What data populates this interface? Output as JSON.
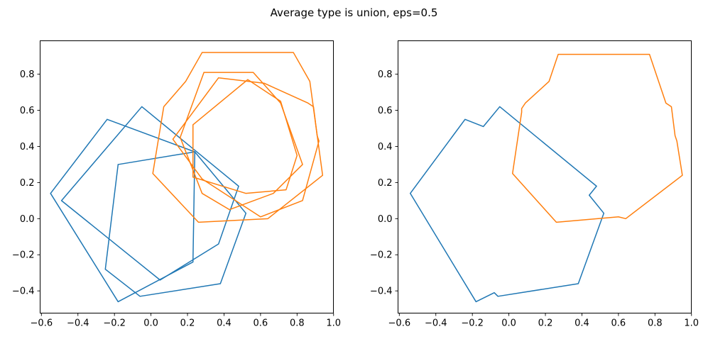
{
  "title": {
    "text": "Average type is union, eps=0.5"
  },
  "colors": {
    "blue": "#1f77b4",
    "orange": "#ff7f0e",
    "spine": "#000000",
    "tick_text": "#000000",
    "background": "#ffffff"
  },
  "chart_data": [
    {
      "id": "left",
      "type": "line",
      "description": "sample polygons",
      "xlim": [
        -0.609,
        1.001
      ],
      "ylim": [
        -0.525,
        0.987
      ],
      "grid": false,
      "legend": "none",
      "xticks": [
        -0.6,
        -0.4,
        -0.2,
        0.0,
        0.2,
        0.4,
        0.6,
        0.8,
        1.0
      ],
      "xtick_labels": [
        "−0.6",
        "−0.4",
        "−0.2",
        "0.0",
        "0.2",
        "0.4",
        "0.6",
        "0.8",
        "1.0"
      ],
      "yticks": [
        0.8,
        0.6,
        0.4,
        0.2,
        0.0,
        -0.2,
        -0.4
      ],
      "ytick_labels": [
        "0.8",
        "0.6",
        "0.4",
        "0.2",
        "0.0",
        "−0.2",
        "−0.4"
      ],
      "series": [
        {
          "name": "sample-polygon-blue-1",
          "color": "blue",
          "closed": true,
          "points": [
            [
              -0.24,
              0.55
            ],
            [
              -0.55,
              0.14
            ],
            [
              -0.18,
              -0.46
            ],
            [
              0.23,
              -0.24
            ],
            [
              0.24,
              0.37
            ]
          ]
        },
        {
          "name": "sample-polygon-blue-2",
          "color": "blue",
          "closed": true,
          "points": [
            [
              -0.05,
              0.62
            ],
            [
              -0.49,
              0.1
            ],
            [
              0.05,
              -0.34
            ],
            [
              0.37,
              -0.14
            ],
            [
              0.48,
              0.18
            ]
          ]
        },
        {
          "name": "sample-polygon-blue-3",
          "color": "blue",
          "closed": true,
          "points": [
            [
              -0.18,
              0.3
            ],
            [
              0.24,
              0.37
            ],
            [
              0.52,
              0.03
            ],
            [
              0.38,
              -0.36
            ],
            [
              -0.06,
              -0.43
            ],
            [
              -0.25,
              -0.28
            ]
          ]
        },
        {
          "name": "sample-polygon-orange-1",
          "color": "orange",
          "closed": true,
          "points": [
            [
              0.28,
              0.92
            ],
            [
              0.78,
              0.92
            ],
            [
              0.87,
              0.76
            ],
            [
              0.94,
              0.24
            ],
            [
              0.64,
              0.0
            ],
            [
              0.26,
              -0.02
            ],
            [
              0.01,
              0.25
            ],
            [
              0.07,
              0.62
            ],
            [
              0.19,
              0.76
            ]
          ]
        },
        {
          "name": "sample-polygon-orange-2",
          "color": "orange",
          "closed": true,
          "points": [
            [
              0.29,
              0.81
            ],
            [
              0.56,
              0.81
            ],
            [
              0.71,
              0.64
            ],
            [
              0.83,
              0.3
            ],
            [
              0.67,
              0.14
            ],
            [
              0.43,
              0.05
            ],
            [
              0.28,
              0.14
            ],
            [
              0.16,
              0.45
            ]
          ]
        },
        {
          "name": "sample-polygon-orange-3",
          "color": "orange",
          "closed": true,
          "points": [
            [
              0.53,
              0.77
            ],
            [
              0.71,
              0.65
            ],
            [
              0.8,
              0.35
            ],
            [
              0.74,
              0.16
            ],
            [
              0.52,
              0.14
            ],
            [
              0.23,
              0.23
            ],
            [
              0.23,
              0.52
            ]
          ]
        },
        {
          "name": "sample-polygon-orange-4",
          "color": "orange",
          "closed": true,
          "points": [
            [
              0.37,
              0.78
            ],
            [
              0.62,
              0.75
            ],
            [
              0.86,
              0.64
            ],
            [
              0.89,
              0.62
            ],
            [
              0.91,
              0.46
            ],
            [
              0.92,
              0.43
            ],
            [
              0.83,
              0.1
            ],
            [
              0.6,
              0.01
            ],
            [
              0.28,
              0.22
            ],
            [
              0.12,
              0.44
            ]
          ]
        }
      ]
    },
    {
      "id": "right",
      "type": "line",
      "description": "union polygons",
      "xlim": [
        -0.609,
        1.001
      ],
      "ylim": [
        -0.525,
        0.987
      ],
      "grid": false,
      "legend": "none",
      "xticks": [
        -0.6,
        -0.4,
        -0.2,
        0.0,
        0.2,
        0.4,
        0.6,
        0.8,
        1.0
      ],
      "xtick_labels": [
        "−0.6",
        "−0.4",
        "−0.2",
        "0.0",
        "0.2",
        "0.4",
        "0.6",
        "0.8",
        "1.0"
      ],
      "yticks": [
        0.8,
        0.6,
        0.4,
        0.2,
        0.0,
        -0.2,
        -0.4
      ],
      "ytick_labels": [
        "0.8",
        "0.6",
        "0.4",
        "0.2",
        "0.0",
        "−0.2",
        "−0.4"
      ],
      "series": [
        {
          "name": "union-polygon-blue",
          "color": "blue",
          "closed": true,
          "points": [
            [
              -0.54,
              0.14
            ],
            [
              -0.24,
              0.55
            ],
            [
              -0.14,
              0.51
            ],
            [
              -0.05,
              0.62
            ],
            [
              0.48,
              0.18
            ],
            [
              0.44,
              0.13
            ],
            [
              0.52,
              0.03
            ],
            [
              0.38,
              -0.36
            ],
            [
              -0.06,
              -0.43
            ],
            [
              -0.08,
              -0.41
            ],
            [
              -0.18,
              -0.46
            ]
          ]
        },
        {
          "name": "union-polygon-orange",
          "color": "orange",
          "closed": true,
          "points": [
            [
              0.27,
              0.91
            ],
            [
              0.77,
              0.91
            ],
            [
              0.86,
              0.64
            ],
            [
              0.89,
              0.62
            ],
            [
              0.91,
              0.46
            ],
            [
              0.92,
              0.43
            ],
            [
              0.95,
              0.24
            ],
            [
              0.64,
              0.0
            ],
            [
              0.6,
              0.01
            ],
            [
              0.26,
              -0.02
            ],
            [
              0.02,
              0.25
            ],
            [
              0.07,
              0.59
            ],
            [
              0.07,
              0.61
            ],
            [
              0.09,
              0.64
            ],
            [
              0.22,
              0.76
            ]
          ]
        }
      ]
    }
  ]
}
